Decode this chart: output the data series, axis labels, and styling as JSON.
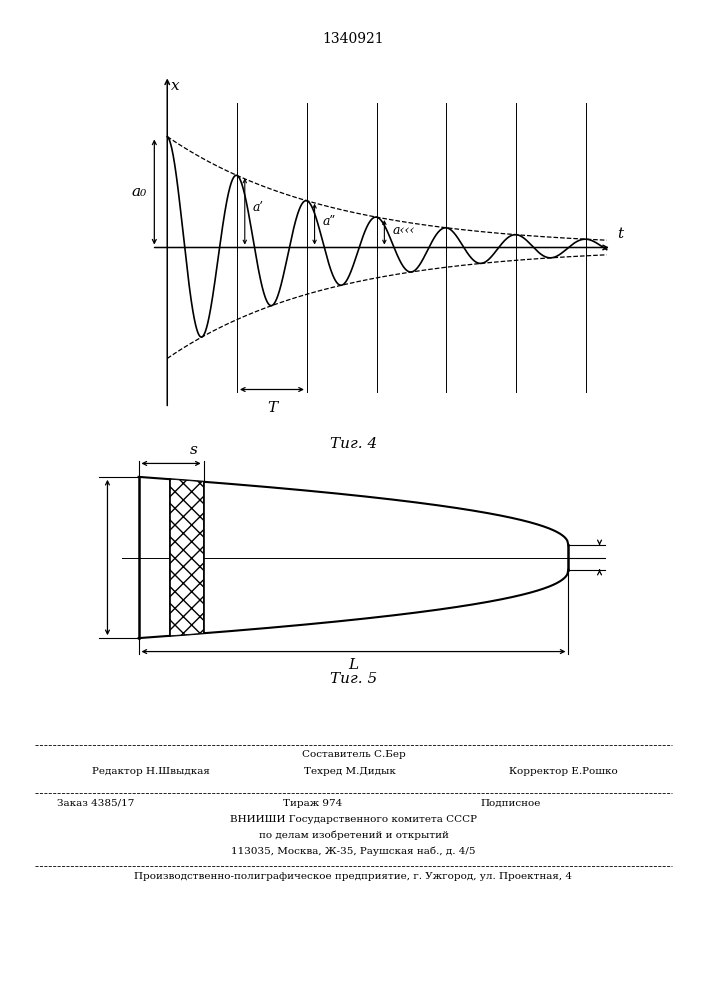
{
  "title": "1340921",
  "fig4_label": "Τиг. 4",
  "fig5_label": "Τиг. 5",
  "xlabel_fig4": "t",
  "ylabel_fig4": "x",
  "period_label": "T",
  "a0_label": "a₀",
  "a1_label": "aʹ",
  "a2_label": "aʺ",
  "a3_label": "a‹‹‹",
  "s_label": "s",
  "l_label": "L",
  "footer_sestavitel": "Составитель С.Бер",
  "footer_redaktor": "Редактор Н.Швыдкая",
  "footer_tehred": "Техред М.Дидык",
  "footer_korrektor": "Корректор Е.Рошко",
  "footer_zakaz": "Заказ 4385/17",
  "footer_tirazh": "Тираж 974",
  "footer_podpisnoe": "Подписное",
  "footer_vniishi": "ВНИИШИ Государственного комитета СССР",
  "footer_po_delam": "по делам изобретений и открытий",
  "footer_address": "113035, Москва, Ж-35, Раушская наб., д. 4/5",
  "footer_proizvod": "Производственно-полиграфическое предприятие, г. Ужгород, ул. Проектная, 4",
  "bg_color": "#ffffff"
}
